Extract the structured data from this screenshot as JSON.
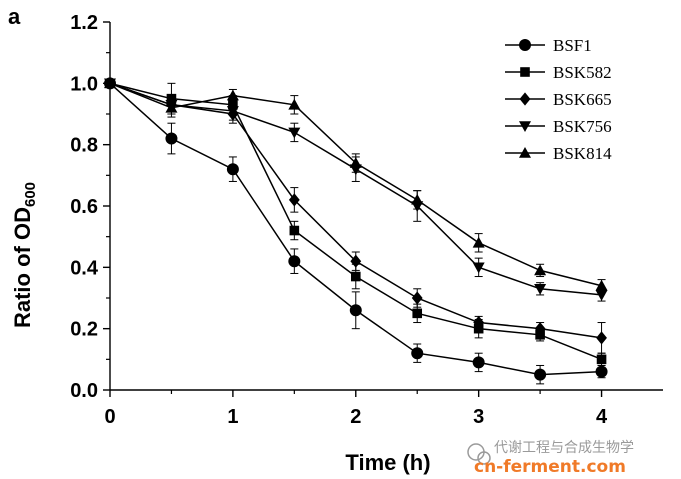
{
  "chart_data": {
    "type": "line",
    "panel_label": "a",
    "title": "",
    "xlabel": "Time (h)",
    "ylabel": "Ratio of OD",
    "ylabel_subscript": "600",
    "xlim": [
      0,
      4.5
    ],
    "ylim": [
      0,
      1.2
    ],
    "xticks": [
      0,
      1,
      2,
      3,
      4
    ],
    "yticks": [
      0.0,
      0.2,
      0.4,
      0.6,
      0.8,
      1.0,
      1.2
    ],
    "xtick_labels": [
      "0",
      "1",
      "2",
      "3",
      "4"
    ],
    "ytick_labels": [
      "0.0",
      "0.2",
      "0.4",
      "0.6",
      "0.8",
      "1.0",
      "1.2"
    ],
    "grid": false,
    "legend_position": "top-right",
    "x": [
      0,
      0.5,
      1,
      1.5,
      2,
      2.5,
      3,
      3.5,
      4
    ],
    "series": [
      {
        "name": "BSF1",
        "marker": "circle",
        "values": [
          1.0,
          0.82,
          0.72,
          0.42,
          0.26,
          0.12,
          0.09,
          0.05,
          0.06
        ],
        "errors": [
          0,
          0.05,
          0.04,
          0.04,
          0.06,
          0.03,
          0.03,
          0.03,
          0.02
        ]
      },
      {
        "name": "BSK582",
        "marker": "square",
        "values": [
          1.0,
          0.95,
          0.93,
          0.52,
          0.37,
          0.25,
          0.2,
          0.18,
          0.1
        ],
        "errors": [
          0,
          0.05,
          0.03,
          0.03,
          0.04,
          0.03,
          0.03,
          0.02,
          0.02
        ]
      },
      {
        "name": "BSK665",
        "marker": "diamond",
        "values": [
          1.0,
          0.93,
          0.9,
          0.62,
          0.42,
          0.3,
          0.22,
          0.2,
          0.17
        ],
        "errors": [
          0,
          0.03,
          0.03,
          0.04,
          0.03,
          0.03,
          0.02,
          0.02,
          0.05
        ]
      },
      {
        "name": "BSK756",
        "marker": "triangle-down",
        "values": [
          1.0,
          0.93,
          0.91,
          0.84,
          0.72,
          0.6,
          0.4,
          0.33,
          0.31
        ],
        "errors": [
          0,
          0.03,
          0.03,
          0.03,
          0.04,
          0.05,
          0.03,
          0.02,
          0.02
        ]
      },
      {
        "name": "BSK814",
        "marker": "triangle-up",
        "values": [
          1.0,
          0.92,
          0.96,
          0.93,
          0.74,
          0.62,
          0.48,
          0.39,
          0.34
        ],
        "errors": [
          0,
          0.03,
          0.02,
          0.03,
          0.03,
          0.03,
          0.03,
          0.02,
          0.02
        ]
      }
    ]
  },
  "watermark": {
    "text_cn": "代谢工程与合成生物学",
    "text_site": "cn-ferment.com"
  },
  "colors": {
    "ink": "#000000",
    "background": "#ffffff",
    "watermark_cn": "#9a9a9a",
    "watermark_site": "#f07a28"
  }
}
